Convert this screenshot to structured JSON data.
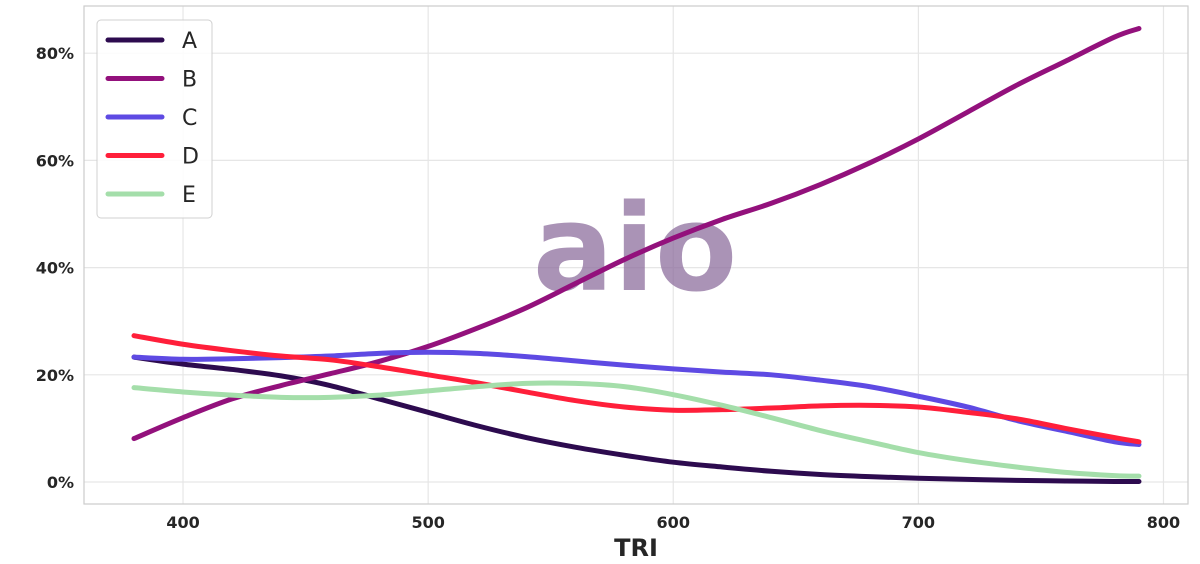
{
  "chart_data": {
    "type": "line",
    "title": "",
    "xlabel": "TRI",
    "ylabel": "",
    "xlim": [
      359.6,
      810
    ],
    "ylim": [
      -4.1,
      88.8
    ],
    "grid": true,
    "legend_placement": "top-left",
    "x_ticks": [
      400,
      500,
      600,
      700,
      800
    ],
    "x_tick_labels": [
      "400",
      "500",
      "600",
      "700",
      "800"
    ],
    "y_ticks": [
      0,
      20,
      40,
      60,
      80
    ],
    "y_tick_labels": [
      "0%",
      "20%",
      "40%",
      "60%",
      "80%"
    ],
    "x": [
      380,
      400,
      420,
      440,
      460,
      480,
      500,
      520,
      540,
      560,
      580,
      600,
      620,
      640,
      660,
      680,
      700,
      720,
      740,
      760,
      780,
      790
    ],
    "series": [
      {
        "name": "A",
        "color": "#2d0b4f",
        "values": [
          23.3,
          22,
          21,
          19.8,
          18,
          15.5,
          13,
          10.5,
          8.3,
          6.5,
          5,
          3.7,
          2.8,
          2,
          1.4,
          1,
          0.7,
          0.5,
          0.3,
          0.2,
          0.1,
          0.1
        ]
      },
      {
        "name": "B",
        "color": "#93117c",
        "values": [
          8.1,
          12,
          15.5,
          18,
          20.2,
          22.5,
          25.3,
          28.7,
          32.5,
          37,
          41.5,
          45.5,
          49,
          52,
          55.5,
          59.5,
          64,
          69,
          74,
          78.5,
          83,
          84.6
        ]
      },
      {
        "name": "C",
        "color": "#5e4ae3",
        "values": [
          23.3,
          22.9,
          23,
          23.2,
          23.5,
          24,
          24.2,
          24,
          23.4,
          22.6,
          21.8,
          21.1,
          20.5,
          20,
          19,
          17.8,
          16,
          14,
          11.5,
          9.5,
          7.5,
          7
        ]
      },
      {
        "name": "D",
        "color": "#ff1f3a",
        "values": [
          27.3,
          25.7,
          24.5,
          23.5,
          22.8,
          21.5,
          20,
          18.5,
          16.8,
          15.2,
          14,
          13.4,
          13.5,
          13.8,
          14.2,
          14.3,
          14,
          13,
          11.8,
          10,
          8.3,
          7.5
        ]
      },
      {
        "name": "E",
        "color": "#a4deaa",
        "values": [
          17.6,
          16.8,
          16.2,
          15.8,
          15.8,
          16.2,
          17,
          17.8,
          18.4,
          18.4,
          17.8,
          16.3,
          14.3,
          12,
          9.6,
          7.5,
          5.5,
          4,
          2.8,
          1.8,
          1.2,
          1.1
        ]
      }
    ]
  },
  "watermark": {
    "text": "aio",
    "color": "#8e6f9e"
  }
}
